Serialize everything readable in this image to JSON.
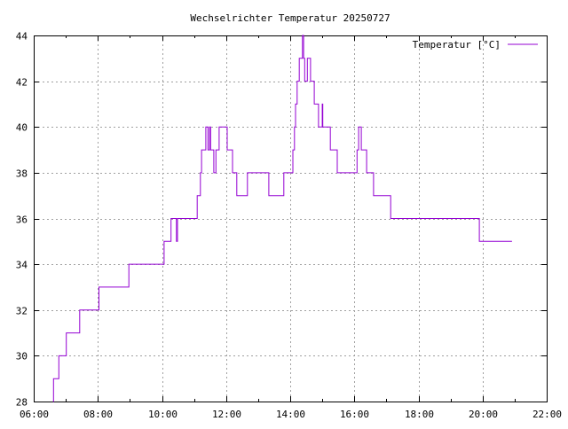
{
  "chart_data": {
    "type": "line",
    "title": "Wechselrichter Temperatur 20250727",
    "xlabel": "",
    "ylabel": "",
    "xlim": [
      "06:00",
      "22:00"
    ],
    "ylim": [
      28,
      44
    ],
    "x_ticks": [
      "06:00",
      "08:00",
      "10:00",
      "12:00",
      "14:00",
      "16:00",
      "18:00",
      "20:00",
      "22:00"
    ],
    "y_ticks": [
      "28",
      "30",
      "32",
      "34",
      "36",
      "38",
      "40",
      "42",
      "44"
    ],
    "grid": true,
    "legend_position": "top-right",
    "step": true,
    "series": [
      {
        "name": "Temperatur [°C]",
        "color": "#9400d3",
        "points": [
          [
            "06:36",
            28
          ],
          [
            "06:37",
            29
          ],
          [
            "06:47",
            30
          ],
          [
            "07:01",
            31
          ],
          [
            "07:26",
            32
          ],
          [
            "08:02",
            33
          ],
          [
            "08:58",
            34
          ],
          [
            "10:04",
            35
          ],
          [
            "10:17",
            36
          ],
          [
            "10:27",
            35
          ],
          [
            "10:29",
            36
          ],
          [
            "11:06",
            37
          ],
          [
            "11:12",
            38
          ],
          [
            "11:14",
            39
          ],
          [
            "11:22",
            40
          ],
          [
            "11:26",
            39
          ],
          [
            "11:29",
            40
          ],
          [
            "11:31",
            39
          ],
          [
            "11:37",
            38
          ],
          [
            "11:41",
            39
          ],
          [
            "11:47",
            40
          ],
          [
            "12:02",
            39
          ],
          [
            "12:12",
            38
          ],
          [
            "12:20",
            37
          ],
          [
            "12:40",
            38
          ],
          [
            "13:20",
            37
          ],
          [
            "13:48",
            38
          ],
          [
            "14:05",
            39
          ],
          [
            "14:08",
            40
          ],
          [
            "14:10",
            41
          ],
          [
            "14:13",
            42
          ],
          [
            "14:17",
            43
          ],
          [
            "14:23",
            44
          ],
          [
            "14:25",
            43
          ],
          [
            "14:27",
            42
          ],
          [
            "14:32",
            43
          ],
          [
            "14:38",
            42
          ],
          [
            "14:45",
            41
          ],
          [
            "14:53",
            40
          ],
          [
            "15:00",
            41
          ],
          [
            "15:01",
            40
          ],
          [
            "15:15",
            39
          ],
          [
            "15:28",
            38
          ],
          [
            "16:05",
            39
          ],
          [
            "16:08",
            40
          ],
          [
            "16:13",
            39
          ],
          [
            "16:23",
            38
          ],
          [
            "16:36",
            37
          ],
          [
            "17:08",
            36
          ],
          [
            "19:54",
            35
          ],
          [
            "20:55",
            35
          ]
        ]
      }
    ]
  }
}
